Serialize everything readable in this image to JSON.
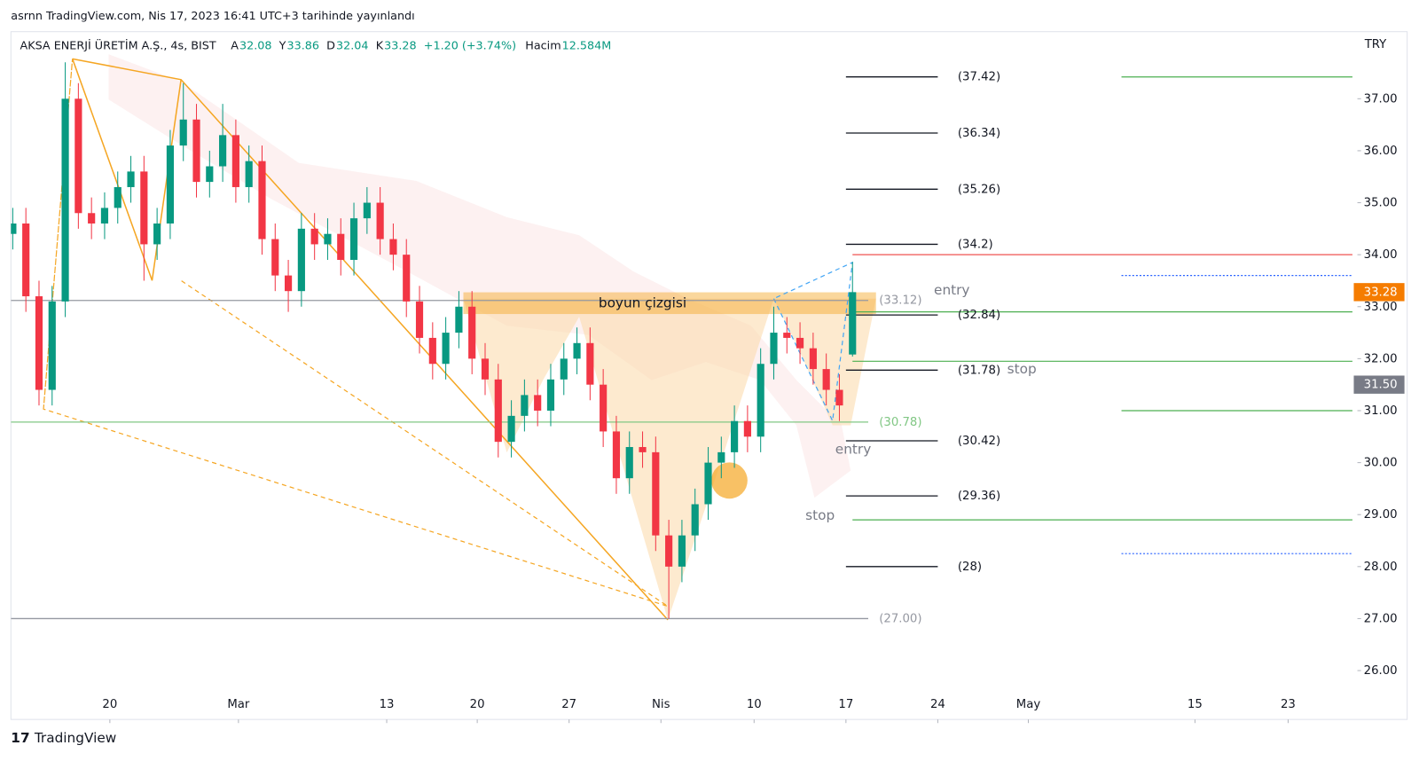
{
  "published": "asrnn TradingView.com, Nis 17, 2023 16:41 UTC+3 tarihinde yayınlandı",
  "header": {
    "symbol": "AKSA ENERJİ ÜRETİM A.Ş., 4s, BIST",
    "ohlc": [
      {
        "key": "A",
        "value": 32.08
      },
      {
        "key": "Y",
        "value": 33.86
      },
      {
        "key": "D",
        "value": 32.04
      },
      {
        "key": "K",
        "value": 33.28
      }
    ],
    "change": "+1.20 (+3.74%)",
    "volume_label": "Hacim",
    "volume": "12.584M"
  },
  "currency": "TRY",
  "brand": "TradingView",
  "chart_data": {
    "type": "candlestick",
    "up_color": "#089981",
    "down_color": "#f23645",
    "xlim": [
      -0.14,
      102.48
    ],
    "xticks": [
      {
        "value": 7.4,
        "label": "20"
      },
      {
        "value": 17.2,
        "label": "Mar"
      },
      {
        "value": 28.5,
        "label": "13"
      },
      {
        "value": 35.4,
        "label": "20"
      },
      {
        "value": 42.4,
        "label": "27"
      },
      {
        "value": 49.4,
        "label": "Nis"
      },
      {
        "value": 56.5,
        "label": "10"
      },
      {
        "value": 63.5,
        "label": "17"
      },
      {
        "value": 70.5,
        "label": "24"
      },
      {
        "value": 77.4,
        "label": "May"
      },
      {
        "value": 90.1,
        "label": "15"
      },
      {
        "value": 97.2,
        "label": "23"
      }
    ],
    "ylim": [
      25.06,
      38.29
    ],
    "yticks": [
      {
        "value": 26,
        "label": "26.00"
      },
      {
        "value": 27,
        "label": "27.00"
      },
      {
        "value": 28,
        "label": "28.00"
      },
      {
        "value": 29,
        "label": "29.00"
      },
      {
        "value": 30,
        "label": "30.00"
      },
      {
        "value": 31,
        "label": "31.00"
      },
      {
        "value": 32,
        "label": "32.00"
      },
      {
        "value": 33,
        "label": "33.00"
      },
      {
        "value": 34,
        "label": "34.00"
      },
      {
        "value": 35,
        "label": "35.00"
      },
      {
        "value": 36,
        "label": "36.00"
      },
      {
        "value": 37,
        "label": "37.00"
      }
    ],
    "grid": false,
    "open": [
      34.4,
      34.6,
      33.2,
      31.4,
      33.1,
      37.0,
      34.8,
      34.6,
      34.9,
      35.3,
      35.6,
      34.2,
      34.6,
      36.1,
      36.6,
      35.4,
      35.7,
      36.3,
      35.3,
      35.8,
      34.3,
      33.6,
      33.3,
      34.5,
      34.2,
      34.4,
      33.9,
      34.7,
      35.0,
      34.3,
      34.0,
      33.1,
      32.4,
      31.9,
      32.5,
      33.0,
      32.0,
      31.6,
      30.4,
      30.9,
      31.3,
      31.0,
      31.6,
      32.0,
      32.3,
      31.5,
      30.6,
      29.7,
      30.3,
      30.2,
      28.6,
      28.0,
      28.6,
      29.2,
      30.0,
      30.2,
      30.8,
      30.5,
      31.9,
      32.5,
      32.4,
      32.2,
      31.8,
      31.4,
      32.08
    ],
    "high": [
      34.9,
      34.9,
      33.5,
      33.4,
      37.7,
      37.3,
      35.1,
      35.2,
      35.6,
      35.9,
      35.9,
      34.9,
      36.4,
      37.3,
      36.9,
      36.0,
      36.9,
      36.6,
      36.1,
      36.1,
      34.6,
      33.9,
      34.8,
      34.8,
      34.7,
      34.7,
      35.0,
      35.3,
      35.3,
      34.6,
      34.3,
      33.4,
      32.7,
      32.8,
      33.3,
      33.3,
      32.3,
      31.9,
      31.2,
      31.6,
      31.6,
      31.9,
      32.3,
      32.6,
      32.6,
      31.8,
      30.9,
      30.6,
      30.6,
      30.5,
      28.9,
      28.9,
      29.5,
      30.3,
      30.5,
      31.1,
      31.1,
      32.2,
      33.0,
      32.8,
      32.7,
      32.5,
      32.1,
      31.7,
      33.86
    ],
    "low": [
      34.1,
      32.9,
      31.1,
      31.1,
      32.8,
      34.5,
      34.3,
      34.3,
      34.6,
      35.0,
      33.5,
      33.9,
      34.3,
      35.8,
      35.1,
      35.1,
      35.4,
      35.0,
      35.0,
      34.0,
      33.3,
      32.9,
      33.0,
      33.9,
      33.9,
      33.6,
      33.6,
      34.4,
      34.0,
      33.7,
      32.8,
      32.1,
      31.6,
      31.6,
      32.2,
      31.7,
      31.3,
      30.1,
      30.1,
      30.6,
      30.7,
      30.7,
      31.3,
      31.7,
      31.2,
      30.3,
      29.4,
      29.4,
      29.9,
      28.3,
      27.0,
      27.7,
      28.3,
      28.9,
      29.7,
      29.9,
      30.2,
      30.2,
      31.6,
      32.1,
      31.9,
      31.5,
      31.1,
      30.8,
      32.04
    ],
    "close": [
      34.6,
      33.2,
      31.4,
      33.1,
      37.0,
      34.8,
      34.6,
      34.9,
      35.3,
      35.6,
      34.2,
      34.6,
      36.1,
      36.6,
      35.4,
      35.7,
      36.3,
      35.3,
      35.8,
      34.3,
      33.6,
      33.3,
      34.5,
      34.2,
      34.4,
      33.9,
      34.7,
      35.0,
      34.3,
      34.0,
      33.1,
      32.4,
      31.9,
      32.5,
      33.0,
      32.0,
      31.6,
      30.4,
      30.9,
      31.3,
      31.0,
      31.6,
      32.0,
      32.3,
      31.5,
      30.6,
      29.7,
      30.3,
      30.2,
      28.6,
      28.0,
      28.6,
      29.2,
      30.0,
      30.2,
      30.8,
      30.5,
      31.9,
      32.5,
      32.4,
      32.2,
      31.8,
      31.4,
      31.1,
      33.28
    ],
    "levels": [
      {
        "value": 37.42,
        "label": "(37.42)",
        "color": "#131722",
        "from": 63.5,
        "to": 70.5
      },
      {
        "value": 36.34,
        "label": "(36.34)",
        "color": "#131722",
        "from": 63.5,
        "to": 70.5
      },
      {
        "value": 35.26,
        "label": "(35.26)",
        "color": "#131722",
        "from": 63.5,
        "to": 70.5
      },
      {
        "value": 34.2,
        "label": "(34.2)",
        "color": "#131722",
        "from": 63.5,
        "to": 70.5
      },
      {
        "value": 33.12,
        "label": "(33.12)",
        "color": "#9598a1",
        "from": -0.14,
        "to": 65.2
      },
      {
        "value": 32.84,
        "label": "(32.84)",
        "color": "#131722",
        "from": 63.5,
        "to": 70.5
      },
      {
        "value": 31.78,
        "label": "(31.78)",
        "color": "#131722",
        "from": 63.5,
        "to": 70.5
      },
      {
        "value": 30.78,
        "label": "(30.78)",
        "color": "#81c784",
        "from": -0.14,
        "to": 65.2
      },
      {
        "value": 30.42,
        "label": "(30.42)",
        "color": "#131722",
        "from": 63.5,
        "to": 70.5
      },
      {
        "value": 29.36,
        "label": "(29.36)",
        "color": "#131722",
        "from": 63.5,
        "to": 70.5
      },
      {
        "value": 28,
        "label": "(28)",
        "color": "#131722",
        "from": 63.5,
        "to": 70.5
      },
      {
        "value": 27,
        "label": "(27.00)",
        "color": "#9598a1",
        "from": -0.14,
        "to": 65.2
      }
    ],
    "guides": [
      {
        "value": 37.42,
        "color": "#4caf50",
        "from": 84.5,
        "to": 102.1
      },
      {
        "value": 34.0,
        "color": "#ef5350",
        "from": 64,
        "to": 102.1
      },
      {
        "value": 33.6,
        "color": "#2962ff",
        "from": 84.5,
        "to": 102.1
      },
      {
        "value": 32.9,
        "color": "#4caf50",
        "from": 64,
        "to": 102.1
      },
      {
        "value": 31.95,
        "color": "#4caf50",
        "from": 64,
        "to": 102.1
      },
      {
        "value": 31.0,
        "color": "#4caf50",
        "from": 84.5,
        "to": 102.1
      },
      {
        "value": 28.9,
        "color": "#4caf50",
        "from": 64,
        "to": 102.1
      },
      {
        "value": 28.25,
        "color": "#2962ff",
        "from": 84.5,
        "to": 102.1
      }
    ],
    "price_tags": [
      {
        "price": 33.28,
        "color": "#f57c00"
      },
      {
        "price": {
          "value": 31.5,
          "label": "31.50"
        },
        "color": "#787b86"
      }
    ],
    "annotations": [
      {
        "text": "boyun çizgisi"
      },
      {
        "text": "entry"
      },
      {
        "text": "stop"
      },
      {
        "text": "entry"
      },
      {
        "text": "stop"
      }
    ]
  }
}
